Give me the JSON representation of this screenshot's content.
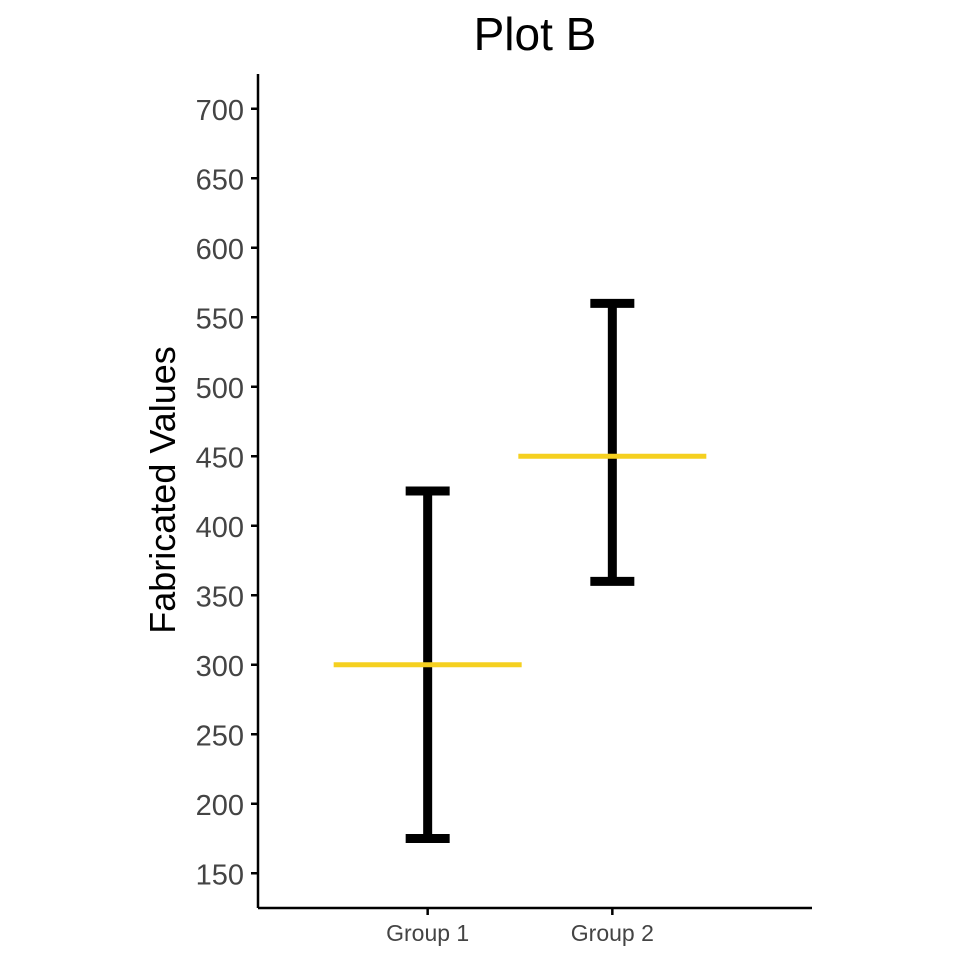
{
  "chart_data": {
    "type": "errorbar",
    "title": "Plot B",
    "xlabel": "",
    "ylabel": "Fabricated Values",
    "categories": [
      "Group 1",
      "Group 2"
    ],
    "means": [
      300,
      450
    ],
    "lower": [
      175,
      360
    ],
    "upper": [
      425,
      560
    ],
    "ylim": [
      125,
      725
    ],
    "yticks": [
      150,
      200,
      250,
      300,
      350,
      400,
      450,
      500,
      550,
      600,
      650,
      700
    ],
    "grid": false,
    "legend": "none",
    "colors": {
      "mean_line": "#F5D020",
      "error_bar": "#000000",
      "axis": "#000000",
      "tick_label": "#444444",
      "title": "#000000"
    }
  }
}
